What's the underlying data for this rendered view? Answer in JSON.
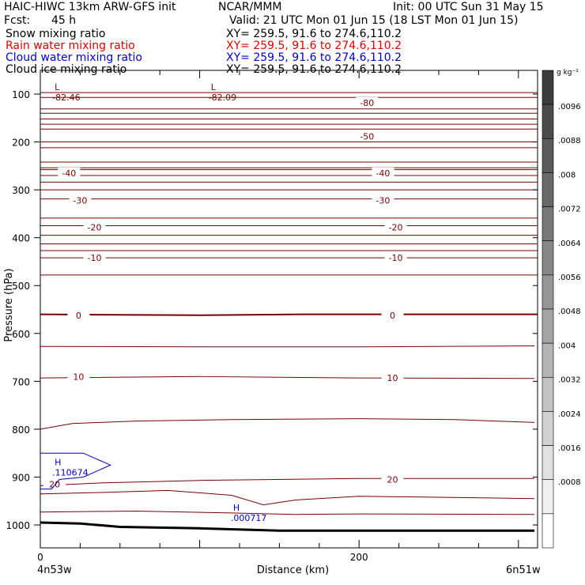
{
  "header": {
    "line1_left": "HAIC-HIWC 13km ARW-GFS init",
    "line1_mid": "NCAR/MMM",
    "line1_right": "Init: 00 UTC Sun 31 May 15",
    "line2_left": "Fcst:",
    "line2_fcst": "45 h",
    "line2_valid": "Valid: 21 UTC Mon 01 Jun 15 (18 LST Mon 01 Jun 15)",
    "fields": [
      {
        "name": "Snow mixing ratio",
        "xy": "XY= 259.5, 91.6 to 274.6,110.2",
        "color": "#000000"
      },
      {
        "name": "Rain water mixing ratio",
        "xy": "XY= 259.5, 91.6 to 274.6,110.2",
        "color": "#e00000"
      },
      {
        "name": "Cloud water mixing ratio",
        "xy": "XY= 259.5, 91.6 to 274.6,110.2",
        "color": "#0000d0"
      },
      {
        "name": "Cloud ice mixing ratio",
        "xy": "XY= 259.5, 91.6 to 274.6,110.2",
        "color": "#000000"
      }
    ]
  },
  "chart_data": {
    "type": "contour",
    "xlabel": "Distance (km)",
    "ylabel": "Pressure (hPa)",
    "xlim": [
      0,
      310
    ],
    "ylim": [
      1050,
      50
    ],
    "x_ticks": [
      "0",
      "200"
    ],
    "y_ticks": [
      "100",
      "200",
      "300",
      "400",
      "500",
      "600",
      "700",
      "800",
      "900",
      "1000"
    ],
    "x_endpoints": [
      "4n53w",
      "6n51w"
    ],
    "colorbar": {
      "unit_label": "g kg⁻¹",
      "ticks": [
        ".0096",
        ".0088",
        ".008",
        ".0072",
        ".0064",
        ".0056",
        ".0048",
        ".004",
        ".0032",
        ".0024",
        ".0016",
        ".0008"
      ]
    },
    "temperature_contours": {
      "color": "#7a0000",
      "labels": [
        {
          "text": "-80",
          "x": 205,
          "p": 118
        },
        {
          "text": "-50",
          "x": 205,
          "p": 188
        },
        {
          "text": "-40",
          "x": 18,
          "p": 265
        },
        {
          "text": "-40",
          "x": 215,
          "p": 265
        },
        {
          "text": "-30",
          "x": 25,
          "p": 322
        },
        {
          "text": "-30",
          "x": 215,
          "p": 322
        },
        {
          "text": "-20",
          "x": 34,
          "p": 378
        },
        {
          "text": "-20",
          "x": 223,
          "p": 378
        },
        {
          "text": "-10",
          "x": 34,
          "p": 442
        },
        {
          "text": "-10",
          "x": 223,
          "p": 442
        },
        {
          "text": "0",
          "x": 24,
          "p": 562
        },
        {
          "text": "0",
          "x": 221,
          "p": 562
        },
        {
          "text": "10",
          "x": 24,
          "p": 690
        },
        {
          "text": "10",
          "x": 221,
          "p": 693
        },
        {
          "text": "20",
          "x": 9,
          "p": 915
        },
        {
          "text": "20",
          "x": 221,
          "p": 905
        }
      ]
    },
    "extrema": [
      {
        "type": "L",
        "value": "-82.46",
        "x": 9,
        "p": 92
      },
      {
        "type": "L",
        "value": "-82.09",
        "x": 107,
        "p": 92
      },
      {
        "type": "H",
        "value": ".110674",
        "x": 9,
        "p": 875,
        "color": "#0000c0"
      },
      {
        "type": "H",
        "value": ".000717",
        "x": 121,
        "p": 970,
        "color": "#0000c0"
      }
    ],
    "surface": {
      "x": [
        0,
        25,
        50,
        100,
        150,
        200,
        250,
        310
      ],
      "p": [
        995,
        997,
        1004,
        1007,
        1012,
        1012,
        1012,
        1012
      ]
    }
  }
}
